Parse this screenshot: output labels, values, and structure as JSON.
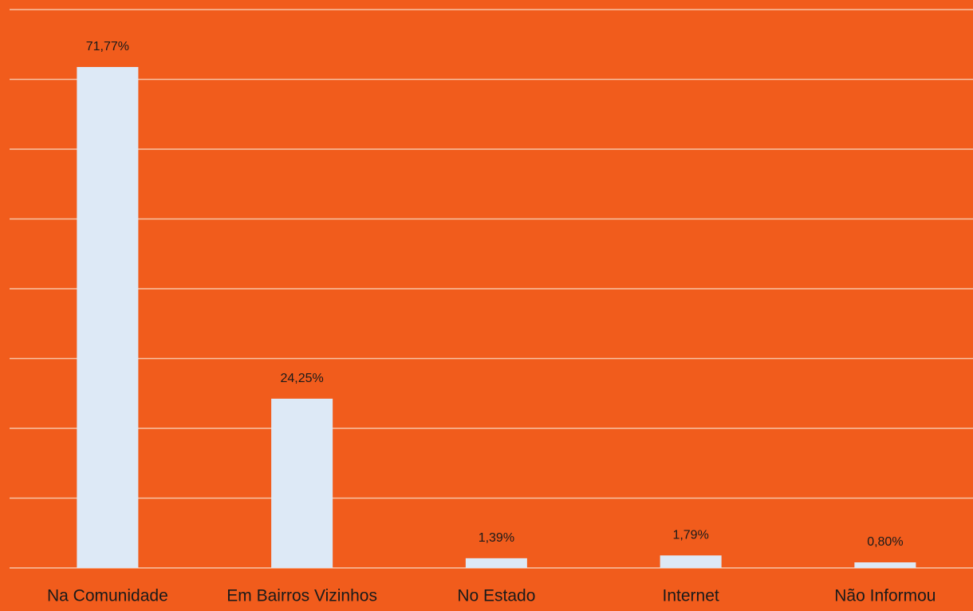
{
  "chart_data": {
    "type": "bar",
    "categories": [
      "Na Comunidade",
      "Em Bairros Vizinhos",
      "No Estado",
      "Internet",
      "Não Informou"
    ],
    "values": [
      71.77,
      24.25,
      1.39,
      1.79,
      0.8
    ],
    "value_labels": [
      "71,77%",
      "24,25%",
      "1,39%",
      "1,79%",
      "0,80%"
    ],
    "color": "#dde9f6",
    "ylim": [
      0,
      80
    ],
    "yticks": [
      0,
      10,
      20,
      30,
      40,
      50,
      60,
      70,
      80
    ],
    "grid": true
  }
}
